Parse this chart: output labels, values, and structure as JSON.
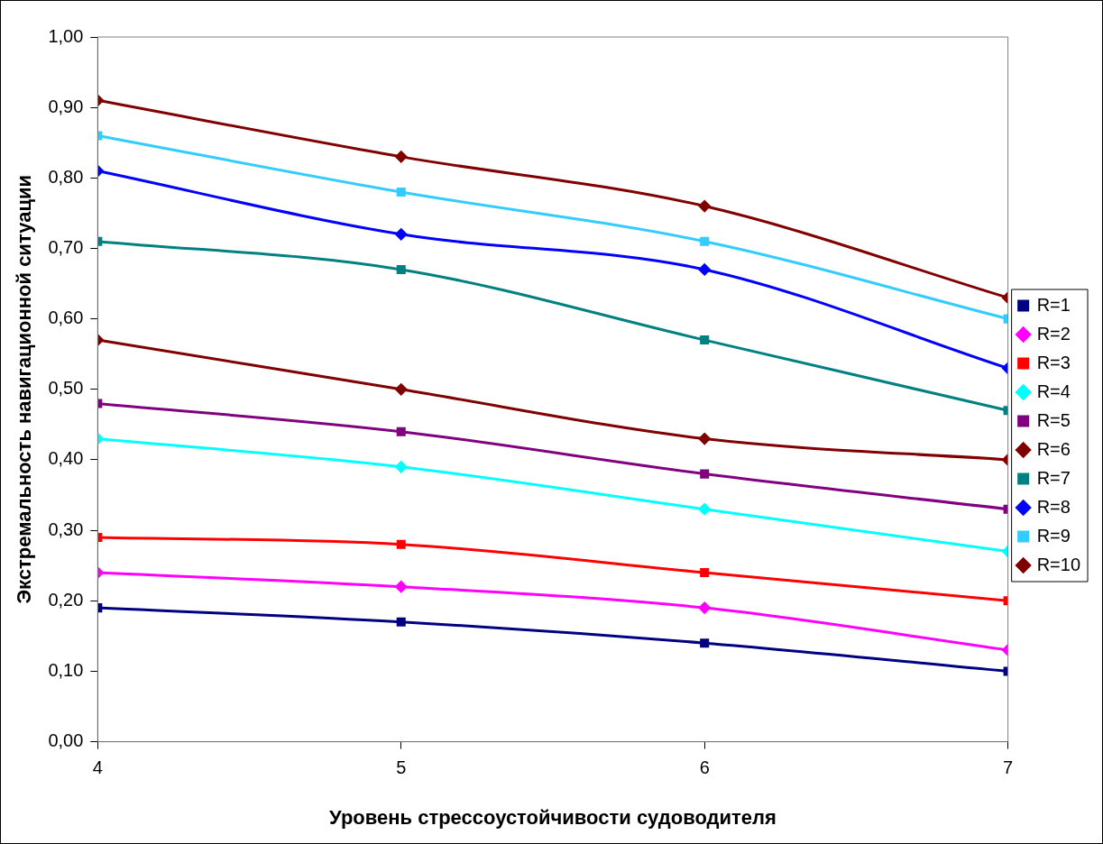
{
  "chart_data": {
    "type": "line",
    "xlabel": "Уровень стрессоустойчивости судоводителя",
    "ylabel": "Экстремальность навигационной ситуации",
    "x": [
      4,
      5,
      6,
      7
    ],
    "xlim": [
      4,
      7
    ],
    "xticks": [
      4,
      5,
      6,
      7
    ],
    "ylim": [
      0,
      1
    ],
    "yticks": [
      {
        "value": 0,
        "label": "0,00"
      },
      {
        "value": 0.1,
        "label": "0,10"
      },
      {
        "value": 0.2,
        "label": "0,20"
      },
      {
        "value": 0.3,
        "label": "0,30"
      },
      {
        "value": 0.4,
        "label": "0,40"
      },
      {
        "value": 0.5,
        "label": "0,50"
      },
      {
        "value": 0.6,
        "label": "0,60"
      },
      {
        "value": 0.7,
        "label": "0,70"
      },
      {
        "value": 0.8,
        "label": "0,80"
      },
      {
        "value": 0.9,
        "label": "0,90"
      },
      {
        "value": 1,
        "label": "1,00"
      }
    ],
    "grid": false,
    "legend": "right",
    "line_style": "solid",
    "series": [
      {
        "name": "R=1",
        "color": "#000080",
        "marker": "square",
        "values": [
          0.19,
          0.17,
          0.14,
          0.1
        ]
      },
      {
        "name": "R=2",
        "color": "#ff00ff",
        "marker": "diamond",
        "values": [
          0.24,
          0.22,
          0.19,
          0.13
        ]
      },
      {
        "name": "R=3",
        "color": "#ff0000",
        "marker": "square",
        "values": [
          0.29,
          0.28,
          0.24,
          0.2
        ]
      },
      {
        "name": "R=4",
        "color": "#00ffff",
        "marker": "diamond",
        "values": [
          0.43,
          0.39,
          0.33,
          0.27
        ]
      },
      {
        "name": "R=5",
        "color": "#800080",
        "marker": "square",
        "values": [
          0.48,
          0.44,
          0.38,
          0.33
        ]
      },
      {
        "name": "R=6",
        "color": "#800000",
        "marker": "diamond",
        "values": [
          0.57,
          0.5,
          0.43,
          0.4
        ]
      },
      {
        "name": "R=7",
        "color": "#008080",
        "marker": "square",
        "values": [
          0.71,
          0.67,
          0.57,
          0.47
        ]
      },
      {
        "name": "R=8",
        "color": "#0000ff",
        "marker": "diamond",
        "values": [
          0.81,
          0.72,
          0.67,
          0.53
        ]
      },
      {
        "name": "R=9",
        "color": "#33ccff",
        "marker": "square",
        "values": [
          0.86,
          0.78,
          0.71,
          0.6
        ]
      },
      {
        "name": "R=10",
        "color": "#800000",
        "marker": "diamond",
        "values": [
          0.91,
          0.83,
          0.76,
          0.63
        ]
      }
    ]
  }
}
